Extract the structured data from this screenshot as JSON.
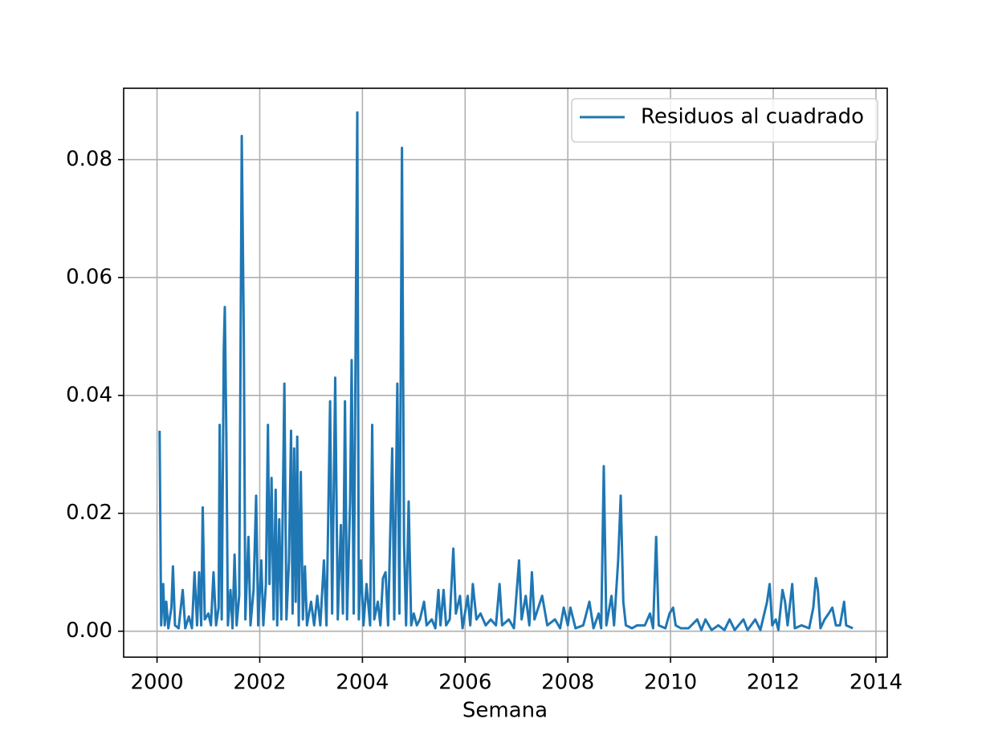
{
  "chart_data": {
    "type": "line",
    "x_label": "Semana",
    "x": [
      2000.05,
      2000.08,
      2000.12,
      2000.15,
      2000.18,
      2000.22,
      2000.28,
      2000.31,
      2000.35,
      2000.42,
      2000.5,
      2000.55,
      2000.62,
      2000.68,
      2000.73,
      2000.78,
      2000.82,
      2000.86,
      2000.89,
      2000.93,
      2001.0,
      2001.05,
      2001.1,
      2001.15,
      2001.2,
      2001.22,
      2001.26,
      2001.3,
      2001.32,
      2001.35,
      2001.38,
      2001.43,
      2001.47,
      2001.51,
      2001.55,
      2001.6,
      2001.65,
      2001.69,
      2001.72,
      2001.78,
      2001.82,
      2001.88,
      2001.93,
      2001.97,
      2002.03,
      2002.07,
      2002.12,
      2002.16,
      2002.19,
      2002.23,
      2002.27,
      2002.31,
      2002.34,
      2002.38,
      2002.42,
      2002.48,
      2002.52,
      2002.57,
      2002.61,
      2002.64,
      2002.67,
      2002.7,
      2002.73,
      2002.76,
      2002.8,
      2002.84,
      2002.88,
      2002.92,
      2003.0,
      2003.06,
      2003.12,
      2003.18,
      2003.25,
      2003.3,
      2003.37,
      2003.41,
      2003.47,
      2003.52,
      2003.58,
      2003.62,
      2003.66,
      2003.7,
      2003.76,
      2003.79,
      2003.83,
      2003.9,
      2003.93,
      2003.97,
      2004.02,
      2004.08,
      2004.15,
      2004.19,
      2004.23,
      2004.3,
      2004.35,
      2004.4,
      2004.45,
      2004.5,
      2004.58,
      2004.62,
      2004.68,
      2004.72,
      2004.77,
      2004.81,
      2004.85,
      2004.9,
      2004.95,
      2005.0,
      2005.06,
      2005.12,
      2005.2,
      2005.25,
      2005.35,
      2005.42,
      2005.48,
      2005.52,
      2005.58,
      2005.63,
      2005.7,
      2005.77,
      2005.82,
      2005.9,
      2005.95,
      2006.05,
      2006.1,
      2006.15,
      2006.22,
      2006.3,
      2006.4,
      2006.5,
      2006.6,
      2006.67,
      2006.72,
      2006.85,
      2006.95,
      2007.05,
      2007.1,
      2007.18,
      2007.25,
      2007.3,
      2007.35,
      2007.5,
      2007.6,
      2007.75,
      2007.85,
      2007.92,
      2008.0,
      2008.05,
      2008.15,
      2008.3,
      2008.42,
      2008.5,
      2008.6,
      2008.65,
      2008.7,
      2008.75,
      2008.85,
      2008.9,
      2008.98,
      2009.03,
      2009.08,
      2009.13,
      2009.25,
      2009.35,
      2009.5,
      2009.6,
      2009.66,
      2009.72,
      2009.77,
      2009.9,
      2009.98,
      2010.05,
      2010.1,
      2010.2,
      2010.35,
      2010.52,
      2010.6,
      2010.68,
      2010.8,
      2010.93,
      2011.05,
      2011.15,
      2011.25,
      2011.42,
      2011.5,
      2011.65,
      2011.75,
      2011.88,
      2011.93,
      2011.98,
      2012.05,
      2012.1,
      2012.18,
      2012.23,
      2012.28,
      2012.37,
      2012.42,
      2012.55,
      2012.7,
      2012.78,
      2012.83,
      2012.87,
      2012.92,
      2013.0,
      2013.08,
      2013.15,
      2013.22,
      2013.3,
      2013.38,
      2013.42,
      2013.55
    ],
    "series": [
      {
        "name": "Residuos al cuadrado",
        "color": "#1f77b4",
        "values": [
          0.034,
          0.001,
          0.008,
          0.001,
          0.005,
          0.0005,
          0.004,
          0.011,
          0.001,
          0.0005,
          0.007,
          0.0005,
          0.0025,
          0.0005,
          0.01,
          0.001,
          0.01,
          0.001,
          0.021,
          0.002,
          0.003,
          0.001,
          0.01,
          0.001,
          0.004,
          0.035,
          0.002,
          0.048,
          0.055,
          0.033,
          0.001,
          0.007,
          0.0005,
          0.013,
          0.001,
          0.006,
          0.084,
          0.05,
          0.002,
          0.016,
          0.001,
          0.007,
          0.023,
          0.001,
          0.012,
          0.001,
          0.008,
          0.035,
          0.008,
          0.026,
          0.002,
          0.024,
          0.001,
          0.019,
          0.002,
          0.042,
          0.002,
          0.012,
          0.034,
          0.003,
          0.031,
          0.005,
          0.033,
          0.001,
          0.027,
          0.002,
          0.011,
          0.001,
          0.005,
          0.001,
          0.006,
          0.001,
          0.012,
          0.001,
          0.039,
          0.003,
          0.043,
          0.002,
          0.018,
          0.003,
          0.039,
          0.002,
          0.022,
          0.046,
          0.003,
          0.088,
          0.002,
          0.012,
          0.001,
          0.008,
          0.001,
          0.035,
          0.002,
          0.005,
          0.001,
          0.009,
          0.01,
          0.001,
          0.031,
          0.002,
          0.042,
          0.003,
          0.082,
          0.015,
          0.001,
          0.022,
          0.001,
          0.003,
          0.001,
          0.002,
          0.005,
          0.001,
          0.002,
          0.0005,
          0.007,
          0.001,
          0.007,
          0.001,
          0.002,
          0.014,
          0.003,
          0.006,
          0.0005,
          0.006,
          0.001,
          0.008,
          0.002,
          0.003,
          0.001,
          0.002,
          0.001,
          0.008,
          0.001,
          0.002,
          0.0005,
          0.012,
          0.002,
          0.006,
          0.001,
          0.01,
          0.002,
          0.006,
          0.001,
          0.002,
          0.0005,
          0.004,
          0.001,
          0.004,
          0.0005,
          0.001,
          0.005,
          0.0005,
          0.003,
          0.0005,
          0.028,
          0.001,
          0.006,
          0.001,
          0.012,
          0.023,
          0.005,
          0.001,
          0.0005,
          0.001,
          0.001,
          0.003,
          0.0005,
          0.016,
          0.001,
          0.0005,
          0.003,
          0.004,
          0.001,
          0.0005,
          0.0005,
          0.002,
          0.0002,
          0.002,
          0.0002,
          0.001,
          0.0002,
          0.002,
          0.0002,
          0.002,
          0.0002,
          0.002,
          0.0002,
          0.005,
          0.008,
          0.001,
          0.002,
          0.0002,
          0.007,
          0.005,
          0.001,
          0.008,
          0.0005,
          0.001,
          0.0005,
          0.004,
          0.009,
          0.007,
          0.0005,
          0.002,
          0.003,
          0.004,
          0.001,
          0.001,
          0.005,
          0.001,
          0.0005
        ]
      }
    ],
    "xlim": [
      1999.35,
      2014.22
    ],
    "xticks": [
      2000,
      2002,
      2004,
      2006,
      2008,
      2010,
      2012,
      2014
    ],
    "ylim": [
      -0.0044,
      0.0921
    ],
    "yticks": [
      {
        "value": 0,
        "label": "0.00"
      },
      {
        "value": 0.02,
        "label": "0.02"
      },
      {
        "value": 0.04,
        "label": "0.04"
      },
      {
        "value": 0.06,
        "label": "0.06"
      },
      {
        "value": 0.08,
        "label": "0.08"
      }
    ],
    "grid": true,
    "legend": "upper right"
  }
}
